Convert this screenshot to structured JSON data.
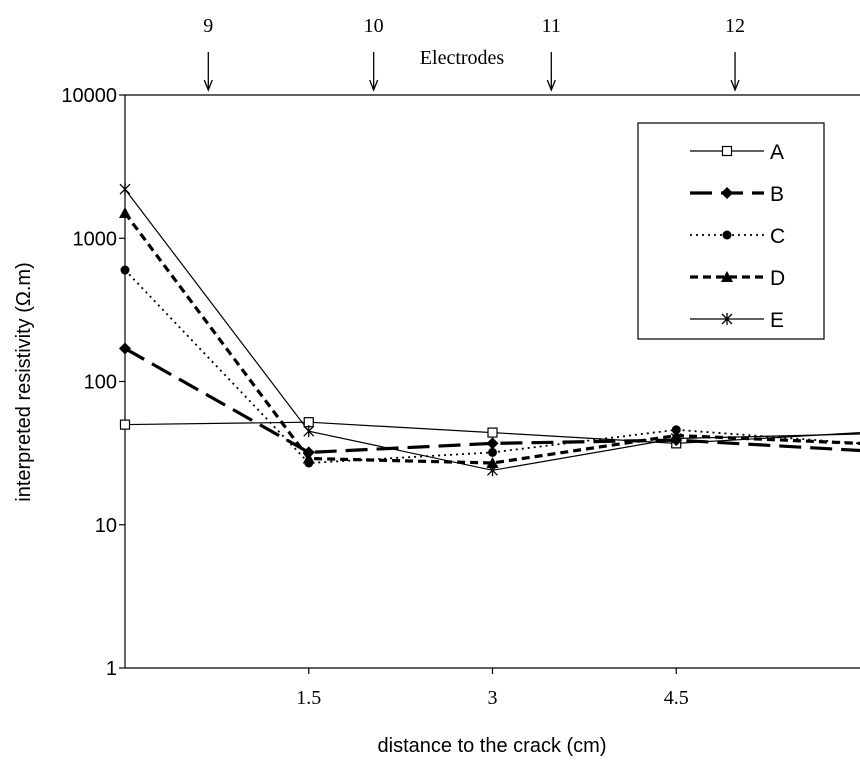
{
  "chart_data": {
    "type": "line",
    "xlabel": "distance to the crack (cm)",
    "ylabel": "interpreted resistivity (Ω.m)",
    "y_scale": "log",
    "ylim": [
      1,
      10000
    ],
    "xlim": [
      0,
      6
    ],
    "x_ticks": [
      {
        "value": 1.5,
        "label": "1.5"
      },
      {
        "value": 3,
        "label": "3"
      },
      {
        "value": 4.5,
        "label": "4.5"
      }
    ],
    "y_ticks": [
      {
        "value": 1,
        "label": "1"
      },
      {
        "value": 10,
        "label": "10"
      },
      {
        "value": 100,
        "label": "100"
      },
      {
        "value": 1000,
        "label": "1000"
      },
      {
        "value": 10000,
        "label": "10000"
      }
    ],
    "top_annotation": {
      "label": "Electrodes",
      "electrodes": [
        {
          "label": "9",
          "x": 0.68
        },
        {
          "label": "10",
          "x": 2.03
        },
        {
          "label": "11",
          "x": 3.48
        },
        {
          "label": "12",
          "x": 4.98
        }
      ]
    },
    "legend_position": "top-right",
    "series": [
      {
        "name": "A",
        "x": [
          0,
          1.5,
          3,
          4.5,
          6
        ],
        "values": [
          50,
          52,
          44,
          37,
          44
        ],
        "marker": "square-open",
        "line": "solid-thin"
      },
      {
        "name": "B",
        "x": [
          0,
          1.5,
          3,
          4.5,
          6
        ],
        "values": [
          170,
          32,
          37,
          39,
          33
        ],
        "marker": "diamond",
        "line": "long-dash-thick"
      },
      {
        "name": "C",
        "x": [
          0,
          1.5,
          3,
          4.5,
          6
        ],
        "values": [
          600,
          27,
          32,
          46,
          37
        ],
        "marker": "circle",
        "line": "dotted"
      },
      {
        "name": "D",
        "x": [
          0,
          1.5,
          3,
          4.5,
          6
        ],
        "values": [
          1500,
          29,
          27,
          42,
          37
        ],
        "marker": "triangle",
        "line": "short-dash-thick"
      },
      {
        "name": "E",
        "x": [
          0,
          1.5,
          3,
          4.5,
          6
        ],
        "values": [
          2200,
          45,
          24,
          40,
          43
        ],
        "marker": "star",
        "line": "solid-thin"
      }
    ]
  }
}
